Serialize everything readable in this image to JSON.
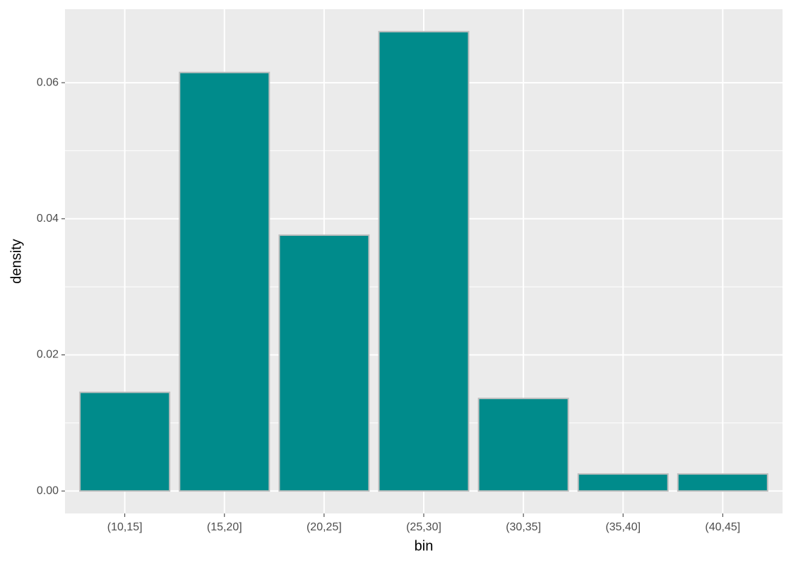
{
  "chart_data": {
    "type": "bar",
    "x_label": "bin",
    "y_label": "density",
    "categories": [
      "(10,15]",
      "(15,20]",
      "(20,25]",
      "(25,30]",
      "(30,35]",
      "(35,40]",
      "(40,45]"
    ],
    "values": [
      0.0145,
      0.0615,
      0.0376,
      0.0675,
      0.0136,
      0.0025,
      0.0025
    ],
    "color": "#008b8b",
    "edge_color": "#bebebe",
    "ylim": [
      -0.0033,
      0.0708
    ],
    "yticks": [
      {
        "value": 0,
        "label": "0.00"
      },
      0.02,
      0.04,
      0.06
    ],
    "y_minor_grid": [
      0.01,
      0.03,
      0.05
    ],
    "grid": true
  }
}
